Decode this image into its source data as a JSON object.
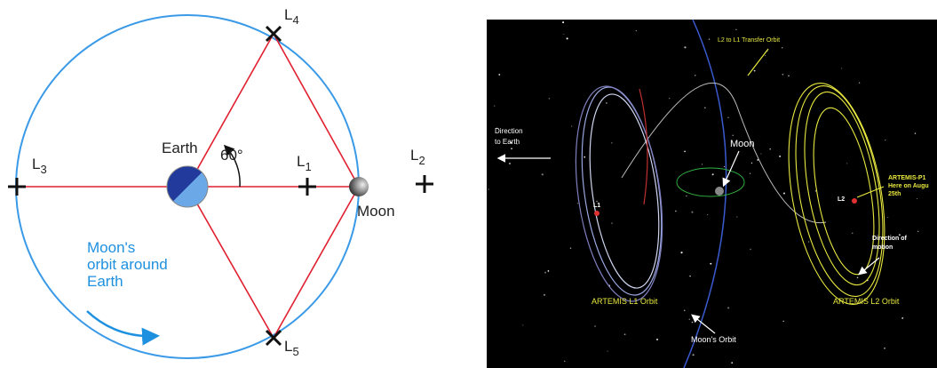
{
  "left": {
    "points": [
      {
        "letter": "L",
        "sub": "1"
      },
      {
        "letter": "L",
        "sub": "2"
      },
      {
        "letter": "L",
        "sub": "3"
      },
      {
        "letter": "L",
        "sub": "4"
      },
      {
        "letter": "L",
        "sub": "5"
      }
    ],
    "earth": "Earth",
    "moon": "Moon",
    "angle": "60°",
    "orbit_caption": [
      "Moon's",
      "orbit around",
      "Earth"
    ]
  },
  "right": {
    "transfer": "L2 to L1 Transfer Orbit",
    "direction_earth": [
      "Direction",
      "to Earth"
    ],
    "moon": "Moon",
    "l1": "L1",
    "l2": "L2",
    "artemis_note": [
      "ARTEMIS-P1",
      "Here on Augu",
      "25th"
    ],
    "direction_motion": [
      "Direction of",
      "motion"
    ],
    "l1_orbit": "ARTEMIS L1 Orbit",
    "l2_orbit": "ARTEMIS L2 Orbit",
    "moon_orbit": "Moon's Orbit"
  }
}
